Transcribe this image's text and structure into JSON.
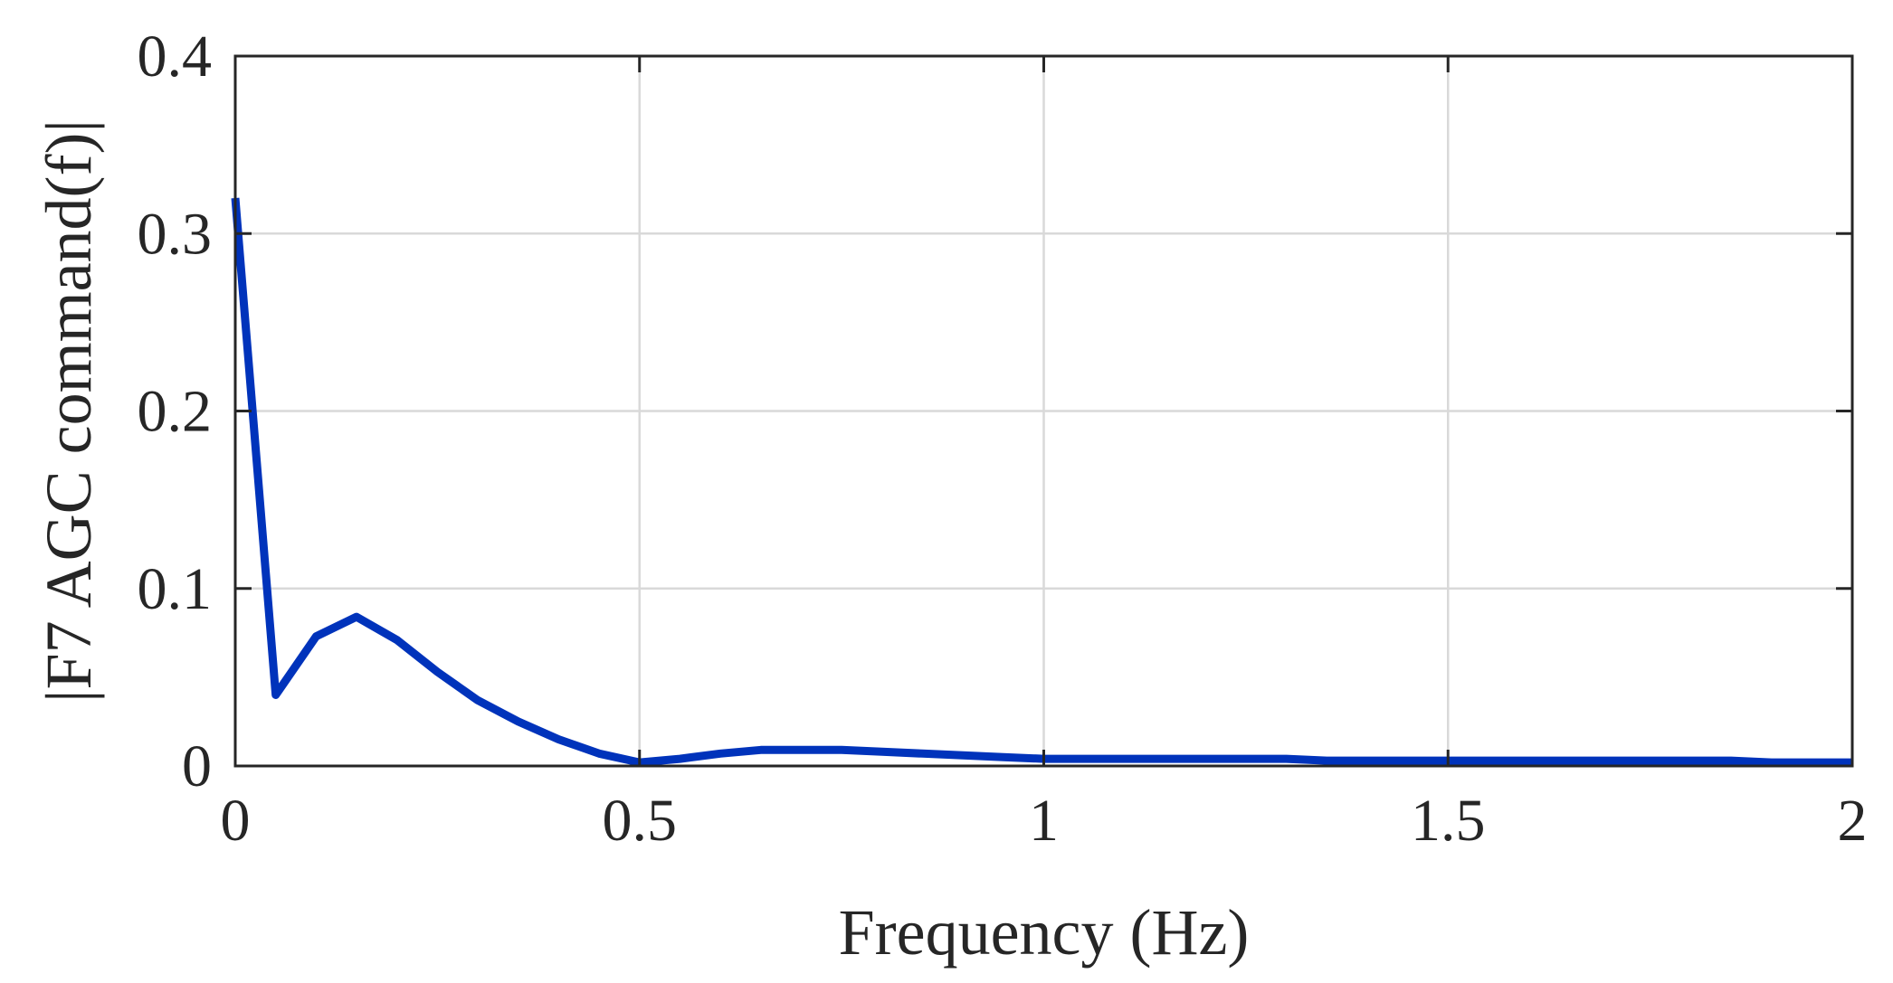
{
  "chart_data": {
    "type": "line",
    "xlabel": "Frequency (Hz)",
    "ylabel": "|F7 AGC command(f)|",
    "xlim": [
      0,
      2
    ],
    "ylim": [
      0,
      0.4
    ],
    "xticks": [
      0,
      0.5,
      1,
      1.5,
      2
    ],
    "xtick_labels": [
      "0",
      "0.5",
      "1",
      "1.5",
      "2"
    ],
    "yticks": [
      0,
      0.1,
      0.2,
      0.3,
      0.4
    ],
    "ytick_labels": [
      "0",
      "0.1",
      "0.2",
      "0.3",
      "0.4"
    ],
    "grid": true,
    "line_color": "#0033bb",
    "series": [
      {
        "x": [
          0,
          0.05,
          0.1,
          0.15,
          0.2,
          0.25,
          0.3,
          0.35,
          0.4,
          0.45,
          0.5,
          0.55,
          0.6,
          0.65,
          0.7,
          0.75,
          0.8,
          0.85,
          0.9,
          0.95,
          1.0,
          1.05,
          1.1,
          1.15,
          1.2,
          1.25,
          1.3,
          1.35,
          1.4,
          1.45,
          1.5,
          1.55,
          1.6,
          1.65,
          1.7,
          1.75,
          1.8,
          1.85,
          1.9,
          1.95,
          2.0
        ],
        "y": [
          0.32,
          0.04,
          0.073,
          0.084,
          0.071,
          0.053,
          0.037,
          0.025,
          0.015,
          0.007,
          0.002,
          0.004,
          0.007,
          0.009,
          0.009,
          0.009,
          0.008,
          0.007,
          0.006,
          0.005,
          0.004,
          0.004,
          0.004,
          0.004,
          0.004,
          0.004,
          0.004,
          0.003,
          0.003,
          0.003,
          0.003,
          0.003,
          0.003,
          0.003,
          0.003,
          0.003,
          0.003,
          0.003,
          0.002,
          0.002,
          0.002
        ]
      }
    ]
  }
}
